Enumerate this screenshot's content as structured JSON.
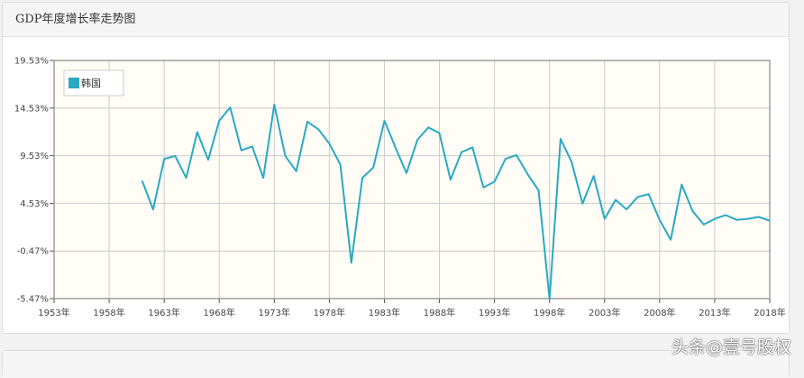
{
  "panel": {
    "title": "GDP年度增长率走势图"
  },
  "watermark": "头条@壹号股权",
  "chart_data": {
    "type": "line",
    "title": "",
    "xlabel": "",
    "ylabel": "",
    "grid": true,
    "legend": {
      "position": "top-left",
      "entries": [
        "韩国"
      ]
    },
    "xlim": [
      1953,
      2018
    ],
    "ylim": [
      -5.47,
      19.53
    ],
    "x_ticks": [
      "1953年",
      "1958年",
      "1963年",
      "1968年",
      "1973年",
      "1978年",
      "1983年",
      "1988年",
      "1993年",
      "1998年",
      "2003年",
      "2008年",
      "2013年",
      "2018年"
    ],
    "y_ticks": [
      "19.53%",
      "14.53%",
      "9.53%",
      "4.53%",
      "-0.47%",
      "-5.47%"
    ],
    "colors": {
      "series": "#29a9c3",
      "plot_bg": "#fffdf5",
      "grid": "#cccccc"
    },
    "series": [
      {
        "name": "韩国",
        "x": [
          1961,
          1962,
          1963,
          1964,
          1965,
          1966,
          1967,
          1968,
          1969,
          1970,
          1971,
          1972,
          1973,
          1974,
          1975,
          1976,
          1977,
          1978,
          1979,
          1980,
          1981,
          1982,
          1983,
          1984,
          1985,
          1986,
          1987,
          1988,
          1989,
          1990,
          1991,
          1992,
          1993,
          1994,
          1995,
          1996,
          1997,
          1998,
          1999,
          2000,
          2001,
          2002,
          2003,
          2004,
          2005,
          2006,
          2007,
          2008,
          2009,
          2010,
          2011,
          2012,
          2013,
          2014,
          2015,
          2016,
          2017,
          2018
        ],
        "values": [
          6.9,
          3.9,
          9.2,
          9.5,
          7.2,
          12.0,
          9.1,
          13.2,
          14.6,
          10.1,
          10.5,
          7.2,
          14.9,
          9.5,
          7.9,
          13.1,
          12.3,
          10.8,
          8.6,
          -1.7,
          7.2,
          8.3,
          13.2,
          10.4,
          7.7,
          11.2,
          12.5,
          11.9,
          7.0,
          9.9,
          10.4,
          6.2,
          6.8,
          9.2,
          9.6,
          7.6,
          5.9,
          -5.5,
          11.3,
          8.9,
          4.5,
          7.4,
          2.9,
          4.9,
          3.9,
          5.2,
          5.5,
          2.8,
          0.7,
          6.5,
          3.7,
          2.3,
          2.9,
          3.3,
          2.8,
          2.9,
          3.1,
          2.7
        ]
      }
    ]
  }
}
